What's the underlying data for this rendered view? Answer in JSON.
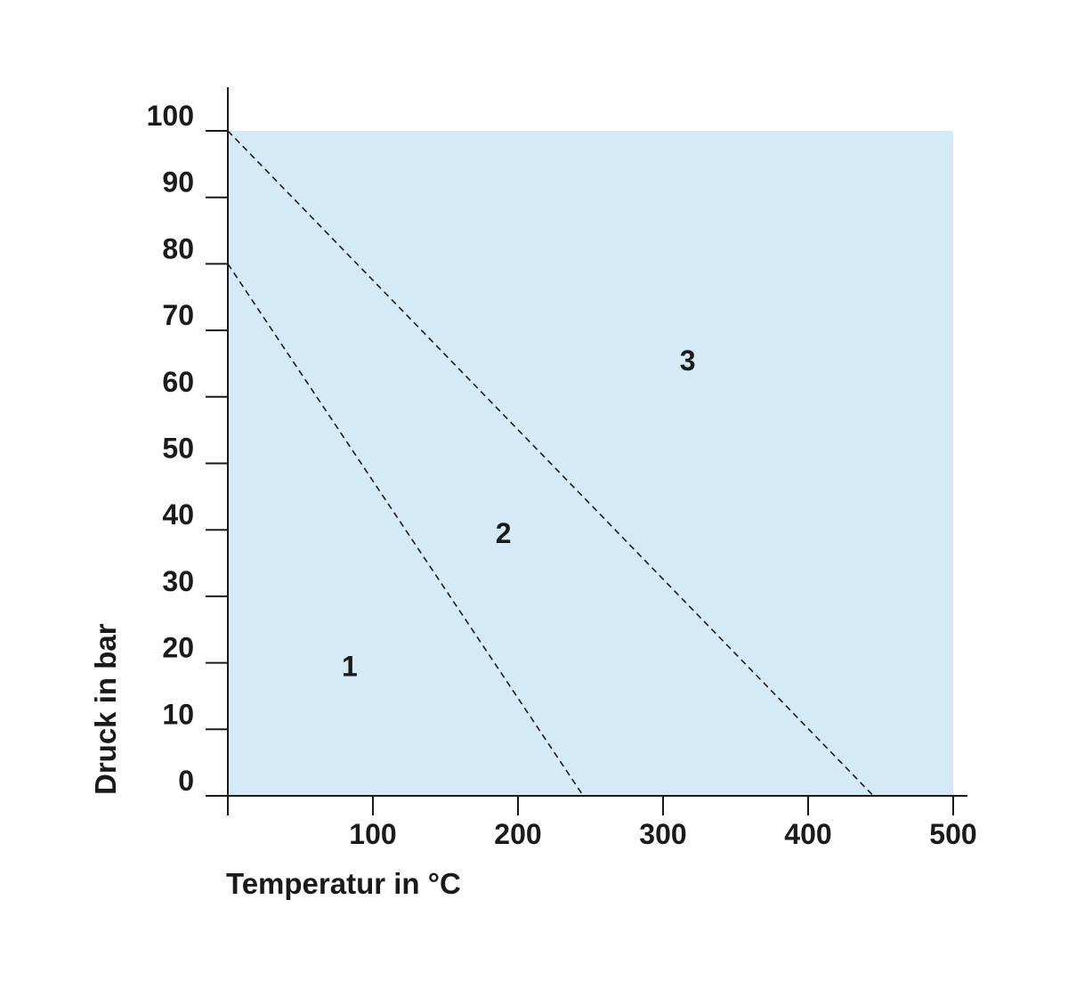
{
  "chart_data": {
    "type": "area",
    "xlabel": "Temperatur in °C",
    "ylabel": "Druck in bar",
    "xlim": [
      0,
      500
    ],
    "ylim": [
      0,
      100
    ],
    "x_ticks": [
      100,
      200,
      300,
      400,
      500
    ],
    "y_ticks": [
      0,
      10,
      20,
      30,
      40,
      50,
      60,
      70,
      80,
      90,
      100
    ],
    "grid": false,
    "fill_color": "#d5eaf7",
    "boundary_lines": [
      {
        "style": "dashed",
        "points": [
          [
            0,
            80
          ],
          [
            245,
            0
          ]
        ]
      },
      {
        "style": "dashed",
        "points": [
          [
            0,
            100
          ],
          [
            445,
            0
          ]
        ]
      }
    ],
    "regions": [
      {
        "label": "1",
        "x": 84,
        "y": 18
      },
      {
        "label": "2",
        "x": 190,
        "y": 38
      },
      {
        "label": "3",
        "x": 317,
        "y": 64
      }
    ]
  }
}
